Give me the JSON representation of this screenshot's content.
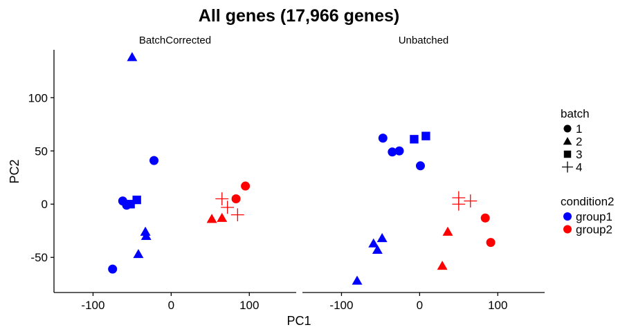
{
  "chart_data": {
    "type": "scatter",
    "title": "All genes (17,966 genes)",
    "xlabel": "PC1",
    "ylabel": "PC2",
    "xlim": [
      -150,
      160
    ],
    "ylim": [
      -83,
      145
    ],
    "x_ticks": [
      "-100",
      "0",
      "100"
    ],
    "x_tick_values": [
      -100,
      0,
      100
    ],
    "y_ticks": [
      "-50",
      "0",
      "50",
      "100"
    ],
    "y_tick_values": [
      -50,
      0,
      50,
      100
    ],
    "grid": false,
    "legend_position": "right",
    "legends": [
      {
        "title": "batch",
        "items": [
          {
            "label": "1",
            "shape": "circle"
          },
          {
            "label": "2",
            "shape": "triangle"
          },
          {
            "label": "3",
            "shape": "square"
          },
          {
            "label": "4",
            "shape": "plus"
          }
        ]
      },
      {
        "title": "condition2",
        "items": [
          {
            "label": "group1",
            "color": "#0000FF"
          },
          {
            "label": "group2",
            "color": "#FF0000"
          }
        ]
      }
    ],
    "panels": [
      {
        "name": "BatchCorrected",
        "points": [
          {
            "x": -50,
            "y": 138,
            "batch": "2",
            "condition2": "group1"
          },
          {
            "x": -22,
            "y": 41,
            "batch": "1",
            "condition2": "group1"
          },
          {
            "x": -62,
            "y": 3,
            "batch": "1",
            "condition2": "group1"
          },
          {
            "x": -57,
            "y": -1,
            "batch": "1",
            "condition2": "group1"
          },
          {
            "x": -52,
            "y": 0,
            "batch": "3",
            "condition2": "group1"
          },
          {
            "x": -44,
            "y": 4,
            "batch": "3",
            "condition2": "group1"
          },
          {
            "x": -33,
            "y": -26,
            "batch": "2",
            "condition2": "group1"
          },
          {
            "x": -32,
            "y": -30,
            "batch": "2",
            "condition2": "group1"
          },
          {
            "x": -42,
            "y": -47,
            "batch": "2",
            "condition2": "group1"
          },
          {
            "x": -75,
            "y": -61,
            "batch": "1",
            "condition2": "group1"
          },
          {
            "x": 95,
            "y": 17,
            "batch": "1",
            "condition2": "group2"
          },
          {
            "x": 83,
            "y": 5,
            "batch": "1",
            "condition2": "group2"
          },
          {
            "x": 65,
            "y": 5,
            "batch": "4",
            "condition2": "group2"
          },
          {
            "x": 72,
            "y": -3,
            "batch": "4",
            "condition2": "group2"
          },
          {
            "x": 85,
            "y": -10,
            "batch": "4",
            "condition2": "group2"
          },
          {
            "x": 52,
            "y": -14,
            "batch": "2",
            "condition2": "group2"
          },
          {
            "x": 65,
            "y": -13,
            "batch": "2",
            "condition2": "group2"
          }
        ]
      },
      {
        "name": "Unbatched",
        "points": [
          {
            "x": -47,
            "y": 62,
            "batch": "1",
            "condition2": "group1"
          },
          {
            "x": -35,
            "y": 49,
            "batch": "1",
            "condition2": "group1"
          },
          {
            "x": -26,
            "y": 50,
            "batch": "1",
            "condition2": "group1"
          },
          {
            "x": -7,
            "y": 61,
            "batch": "3",
            "condition2": "group1"
          },
          {
            "x": 8,
            "y": 64,
            "batch": "3",
            "condition2": "group1"
          },
          {
            "x": 1,
            "y": 36,
            "batch": "1",
            "condition2": "group1"
          },
          {
            "x": -48,
            "y": -32,
            "batch": "2",
            "condition2": "group1"
          },
          {
            "x": -59,
            "y": -37,
            "batch": "2",
            "condition2": "group1"
          },
          {
            "x": -54,
            "y": -43,
            "batch": "2",
            "condition2": "group1"
          },
          {
            "x": -80,
            "y": -72,
            "batch": "2",
            "condition2": "group1"
          },
          {
            "x": 50,
            "y": 6,
            "batch": "4",
            "condition2": "group2"
          },
          {
            "x": 50,
            "y": 0,
            "batch": "4",
            "condition2": "group2"
          },
          {
            "x": 65,
            "y": 3,
            "batch": "4",
            "condition2": "group2"
          },
          {
            "x": 84,
            "y": -13,
            "batch": "1",
            "condition2": "group2"
          },
          {
            "x": 91,
            "y": -36,
            "batch": "1",
            "condition2": "group2"
          },
          {
            "x": 36,
            "y": -26,
            "batch": "2",
            "condition2": "group2"
          },
          {
            "x": 29,
            "y": -58,
            "batch": "2",
            "condition2": "group2"
          }
        ]
      }
    ]
  }
}
